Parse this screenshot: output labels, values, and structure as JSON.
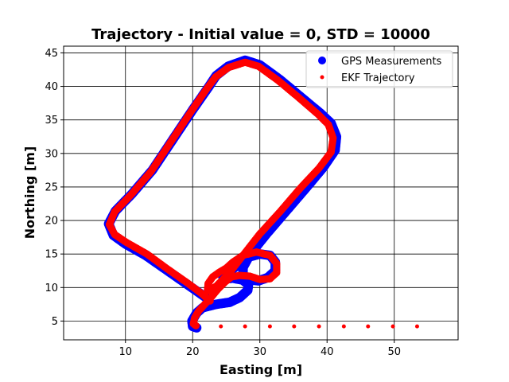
{
  "chart_data": {
    "type": "scatter",
    "title": "Trajectory - Initial value = 0, STD = 10000",
    "xlabel": "Easting [m]",
    "ylabel": "Northing [m]",
    "xlim": [
      0.8,
      59.5
    ],
    "ylim": [
      2.2,
      46.0
    ],
    "xticks": [
      10,
      20,
      30,
      40,
      50
    ],
    "yticks": [
      5,
      10,
      15,
      20,
      25,
      30,
      35,
      40,
      45
    ],
    "grid": true,
    "legend": "top-right",
    "series": [
      {
        "name": "GPS Measurements",
        "color": "#0000ff",
        "marker": "big-dot",
        "path": [
          [
            20.6,
            4.0
          ],
          [
            20.0,
            4.2
          ],
          [
            19.9,
            5.0
          ],
          [
            20.6,
            6.2
          ],
          [
            21.5,
            7.0
          ],
          [
            23.5,
            7.5
          ],
          [
            25.5,
            7.8
          ],
          [
            27.0,
            8.5
          ],
          [
            28.2,
            9.6
          ],
          [
            28.3,
            10.4
          ],
          [
            27.5,
            11.1
          ],
          [
            26.0,
            11.4
          ],
          [
            25.0,
            11.3
          ],
          [
            24.5,
            11.6
          ],
          [
            25.5,
            12.4
          ],
          [
            27.0,
            13.6
          ],
          [
            28.5,
            14.6
          ],
          [
            30.0,
            15.0
          ],
          [
            31.5,
            14.8
          ],
          [
            32.3,
            13.8
          ],
          [
            32.3,
            12.5
          ],
          [
            31.2,
            11.5
          ],
          [
            29.8,
            11.0
          ],
          [
            28.2,
            11.2
          ],
          [
            27.5,
            11.6
          ],
          [
            27.5,
            13.0
          ],
          [
            28.6,
            15.0
          ],
          [
            31.0,
            18.0
          ],
          [
            34.0,
            21.5
          ],
          [
            37.0,
            25.0
          ],
          [
            39.5,
            28.0
          ],
          [
            41.2,
            30.5
          ],
          [
            41.4,
            32.5
          ],
          [
            40.6,
            34.5
          ],
          [
            39.0,
            36.0
          ],
          [
            36.0,
            38.5
          ],
          [
            33.0,
            41.0
          ],
          [
            30.0,
            43.2
          ],
          [
            27.8,
            43.9
          ],
          [
            25.3,
            43.0
          ],
          [
            23.5,
            41.6
          ],
          [
            22.3,
            39.8
          ],
          [
            20.0,
            36.5
          ],
          [
            17.0,
            32.0
          ],
          [
            14.0,
            27.5
          ],
          [
            11.0,
            24.0
          ],
          [
            8.5,
            21.4
          ],
          [
            7.5,
            19.5
          ],
          [
            8.2,
            17.8
          ],
          [
            10.0,
            16.5
          ],
          [
            13.0,
            14.8
          ],
          [
            16.0,
            12.7
          ],
          [
            19.0,
            10.6
          ],
          [
            21.0,
            9.2
          ],
          [
            22.4,
            8.2
          ],
          [
            22.4,
            7.8
          ]
        ]
      },
      {
        "name": "EKF Trajectory",
        "color": "#ff0000",
        "marker": "small-dot",
        "path": [
          [
            20.5,
            4.3
          ],
          [
            20.1,
            4.6
          ],
          [
            20.3,
            5.5
          ],
          [
            20.9,
            6.5
          ],
          [
            21.8,
            7.5
          ],
          [
            22.8,
            8.6
          ],
          [
            23.8,
            9.8
          ],
          [
            24.8,
            10.8
          ],
          [
            25.8,
            11.6
          ],
          [
            27.0,
            11.8
          ],
          [
            28.5,
            11.7
          ],
          [
            30.0,
            11.2
          ],
          [
            31.5,
            11.3
          ],
          [
            32.5,
            12.2
          ],
          [
            32.5,
            13.6
          ],
          [
            31.5,
            14.8
          ],
          [
            29.5,
            15.3
          ],
          [
            27.5,
            14.8
          ],
          [
            26.0,
            13.8
          ],
          [
            25.0,
            12.9
          ],
          [
            24.0,
            12.3
          ],
          [
            23.0,
            11.6
          ],
          [
            22.3,
            10.6
          ],
          [
            22.2,
            9.5
          ],
          [
            23.5,
            10.2
          ],
          [
            25.5,
            12.2
          ],
          [
            27.5,
            14.8
          ],
          [
            30.0,
            18.0
          ],
          [
            33.0,
            21.3
          ],
          [
            36.0,
            24.8
          ],
          [
            38.8,
            27.8
          ],
          [
            40.6,
            30.2
          ],
          [
            40.9,
            32.3
          ],
          [
            40.2,
            34.3
          ],
          [
            38.7,
            35.8
          ],
          [
            35.7,
            38.4
          ],
          [
            32.7,
            40.9
          ],
          [
            29.8,
            43.0
          ],
          [
            27.8,
            43.6
          ],
          [
            25.3,
            42.8
          ],
          [
            23.4,
            41.4
          ],
          [
            22.0,
            39.5
          ],
          [
            19.8,
            36.3
          ],
          [
            16.8,
            31.8
          ],
          [
            13.8,
            27.3
          ],
          [
            10.8,
            23.8
          ],
          [
            8.4,
            21.3
          ],
          [
            7.6,
            19.4
          ],
          [
            8.4,
            17.9
          ],
          [
            10.2,
            16.7
          ],
          [
            13.2,
            15.0
          ],
          [
            16.2,
            12.8
          ],
          [
            19.2,
            10.7
          ],
          [
            21.2,
            9.2
          ],
          [
            22.6,
            8.0
          ]
        ],
        "points": [
          [
            24.2,
            4.2
          ],
          [
            27.8,
            4.2
          ],
          [
            31.5,
            4.2
          ],
          [
            35.1,
            4.2
          ],
          [
            38.8,
            4.2
          ],
          [
            42.5,
            4.2
          ],
          [
            46.1,
            4.2
          ],
          [
            49.8,
            4.2
          ],
          [
            53.4,
            4.2
          ]
        ]
      }
    ]
  }
}
